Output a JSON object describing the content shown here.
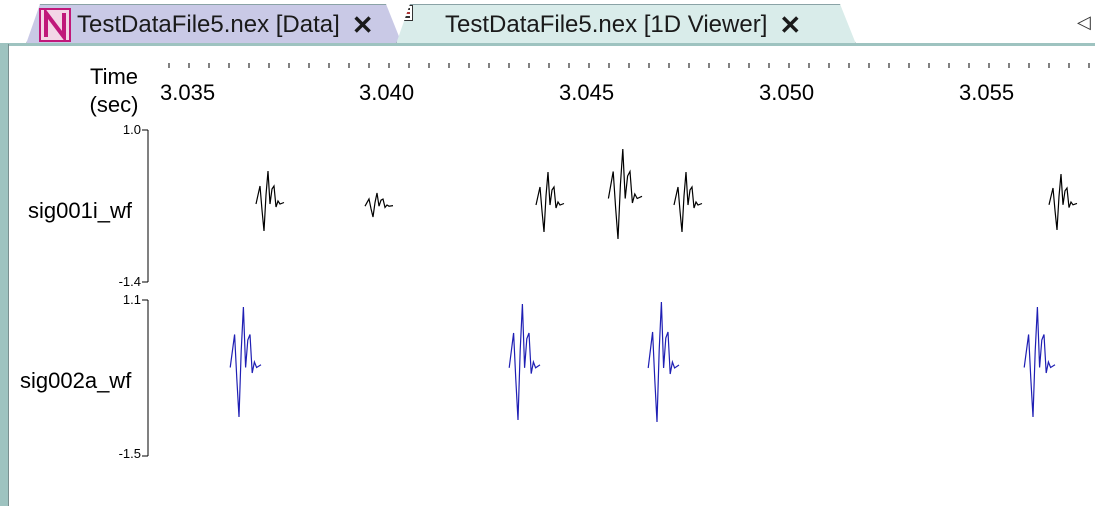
{
  "tabs": [
    {
      "label": "TestDataFile5.nex [Data]",
      "icon": "nex-app-icon",
      "active": false
    },
    {
      "label": "TestDataFile5.nex [1D Viewer]",
      "icon": "viewer-grid-icon",
      "active": true
    }
  ],
  "close_glyph": "✕",
  "scroll_glyph": "◁",
  "axis": {
    "time_label_line1": "Time",
    "time_label_line2": "(sec)",
    "ticks": [
      "3.035",
      "3.040",
      "3.045",
      "3.050",
      "3.055"
    ]
  },
  "channels": [
    {
      "name": "sig001i_wf",
      "max": "1.0",
      "min": "-1.4",
      "color": "#000000"
    },
    {
      "name": "sig002a_wf",
      "max": "1.1",
      "min": "-1.5",
      "color": "#1f1fb4"
    }
  ]
}
